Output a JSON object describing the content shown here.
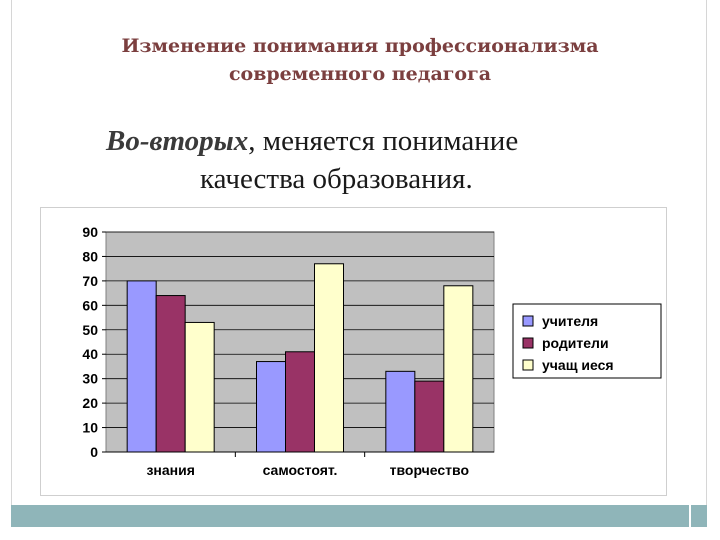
{
  "slide": {
    "title_line1": "Изменение понимания профессионализма",
    "title_line2": "современного педагога",
    "subtitle_emph": "Во-вторых",
    "subtitle_rest": ", меняется понимание",
    "subtitle_line2": "качества образования."
  },
  "chart_data": {
    "type": "bar",
    "categories": [
      "знания",
      "самостоят.",
      "творчество"
    ],
    "series": [
      {
        "name": "учителя",
        "values": [
          70,
          37,
          33
        ],
        "color": "#9999ff"
      },
      {
        "name": "родители",
        "values": [
          64,
          41,
          29
        ],
        "color": "#993366"
      },
      {
        "name": "учащ иеся",
        "values": [
          53,
          77,
          68
        ],
        "color": "#ffffcc"
      }
    ],
    "ylim": [
      0,
      90
    ],
    "yticks": [
      0,
      10,
      20,
      30,
      40,
      50,
      60,
      70,
      80,
      90
    ],
    "grid": true,
    "plot_background": "#c0c0c0",
    "legend_position": "right"
  }
}
